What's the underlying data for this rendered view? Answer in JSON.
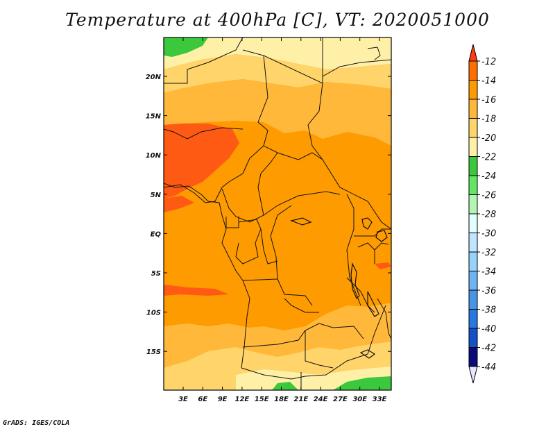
{
  "title": "Temperature at 400hPa [C], VT: 2020051000",
  "footer": "GrADS: IGES/COLA",
  "map": {
    "lon_ticks": [
      "3E",
      "6E",
      "9E",
      "12E",
      "15E",
      "18E",
      "21E",
      "24E",
      "27E",
      "30E",
      "33E"
    ],
    "lat_ticks": [
      "20N",
      "15N",
      "10N",
      "5N",
      "EQ",
      "5S",
      "10S",
      "15S"
    ]
  },
  "colorbar": {
    "labels": [
      "-12",
      "-14",
      "-16",
      "-18",
      "-20",
      "-22",
      "-24",
      "-26",
      "-28",
      "-30",
      "-32",
      "-34",
      "-36",
      "-38",
      "-40",
      "-42",
      "-44"
    ],
    "colors": [
      "#ff3c16",
      "#ff6e00",
      "#fe9b00",
      "#ffb83a",
      "#ffd46a",
      "#fff0a8",
      "#3cc83c",
      "#64e664",
      "#b4f5b4",
      "#e1ffff",
      "#bee6ff",
      "#96d2fa",
      "#6eb4f0",
      "#4696e6",
      "#2878e1",
      "#1450c8",
      "#0a0a7a",
      "#e6e6ff"
    ]
  },
  "fill_colors": {
    "red": "#ff5a14",
    "deep_orange": "#fe9b00",
    "orange": "#ffb83a",
    "light_orange": "#ffd46a",
    "pale_yellow": "#fff0a8",
    "green": "#3cc83c"
  }
}
